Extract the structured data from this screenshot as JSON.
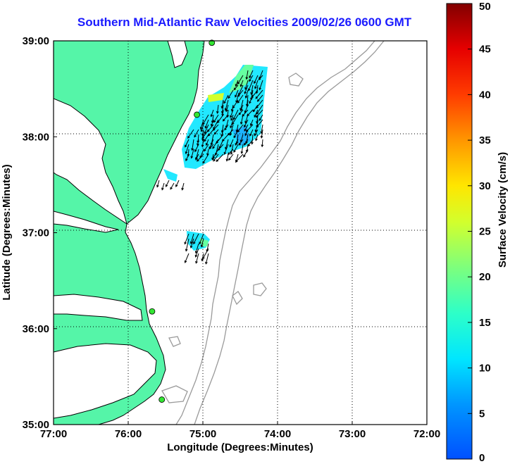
{
  "title": "Southern Mid-Atlantic Raw Velocities 2009/02/26 0600 GMT",
  "map": {
    "xlabel": "Longitude (Degrees:Minutes)",
    "ylabel": "Latitude (Degrees:Minutes)",
    "x_ticks": [
      "77:00",
      "76:00",
      "75:00",
      "74:00",
      "73:00",
      "72:00"
    ],
    "y_ticks": [
      "39:00",
      "38:00",
      "37:00",
      "36:00",
      "35:00"
    ],
    "lon_range": [
      -77,
      -72
    ],
    "lat_range": [
      35,
      39
    ],
    "grid": "dotted",
    "colors": {
      "land": "#55f5a8",
      "bathymetry": "#9a9a9a",
      "coast": "#000000",
      "station": "#33e633"
    },
    "stations": [
      {
        "lon": -74.88,
        "lat": 38.98
      },
      {
        "lon": -75.08,
        "lat": 38.23
      },
      {
        "lon": -75.68,
        "lat": 36.18
      },
      {
        "lon": -75.55,
        "lat": 35.26
      }
    ]
  },
  "colorbar": {
    "label": "Surface Velocity (cm/s)",
    "ticks": [
      "0",
      "5",
      "10",
      "15",
      "20",
      "25",
      "30",
      "35",
      "40",
      "45",
      "50"
    ],
    "min": 0,
    "max": 50,
    "colormap": "jet"
  }
}
